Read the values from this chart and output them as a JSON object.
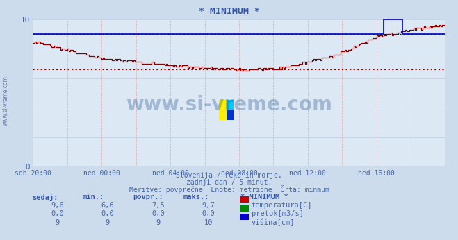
{
  "title": "* MINIMUM *",
  "bg_color": "#ccdcec",
  "plot_bg_color": "#dce8f4",
  "x_labels": [
    "sob 20:00",
    "ned 00:00",
    "ned 04:00",
    "ned 08:00",
    "ned 12:00",
    "ned 16:00"
  ],
  "x_ticks": [
    0,
    48,
    96,
    144,
    192,
    240
  ],
  "x_max": 288,
  "y_min": 0,
  "y_max": 10,
  "subtitle_lines": [
    "Slovenija / reke in morje.",
    "zadnji dan / 5 minut.",
    "Meritve: povprečne  Enote: metrične  Črta: minmum"
  ],
  "footer_headers": [
    "sedaj:",
    "min.:",
    "povpr.:",
    "maks.:",
    "* MINIMUM *"
  ],
  "footer_rows": [
    [
      "9,6",
      "6,6",
      "7,5",
      "9,7",
      "temperatura[C]",
      "#cc0000"
    ],
    [
      "0,0",
      "0,0",
      "0,0",
      "0,0",
      "pretok[m3/s]",
      "#008800"
    ],
    [
      "9",
      "9",
      "9",
      "10",
      "višina[cm]",
      "#0000cc"
    ]
  ],
  "temp_color": "#880000",
  "pretok_color": "#008800",
  "visina_color": "#0000cc",
  "temp_min_val": 6.6,
  "visina_val": 9.0,
  "visina_spike": 10.0,
  "visina_spike_start": 245,
  "visina_spike_end": 258,
  "visina_avg_line": 9.0,
  "watermark_text": "www.si-vreme.com",
  "watermark_color": "#1a4a8a",
  "axis_label_color": "#4466aa",
  "text_color": "#3355aa",
  "vgrid_color": "#e8b0b0",
  "hgrid_color": "#b8cce0"
}
